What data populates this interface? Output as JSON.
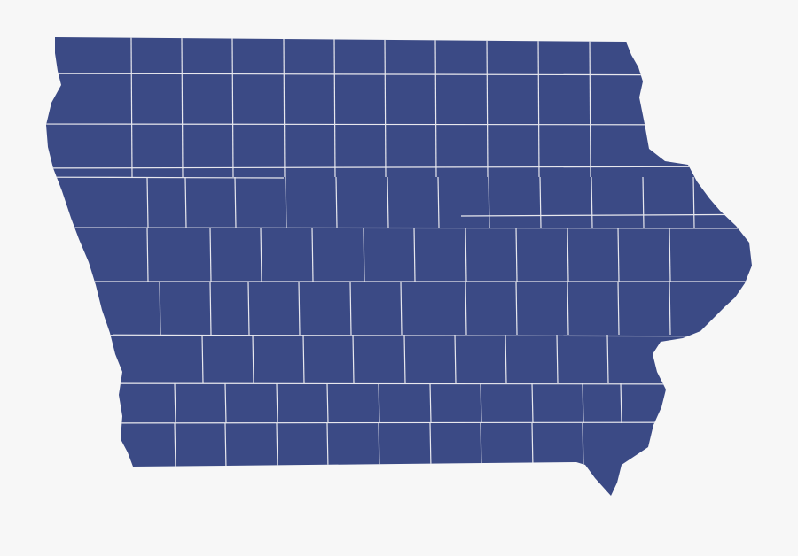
{
  "map": {
    "region": "Iowa counties",
    "fill_color": "#3b4a85",
    "border_color": "#e8e8ee",
    "background_color": "#f7f7f7"
  }
}
